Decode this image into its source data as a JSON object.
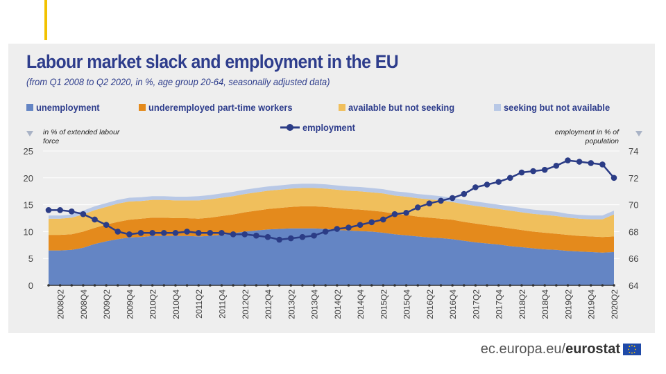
{
  "header": {
    "title": "Labour market slack and employment in the EU",
    "subtitle": "(from Q1 2008 to Q2 2020, in %, age group 20-64, seasonally adjusted data)"
  },
  "axis_notes": {
    "left": "in % of extended labour force",
    "right": "employment in % of population"
  },
  "footer": {
    "url": "ec.europa.eu/",
    "brand": "eurostat"
  },
  "colors": {
    "unemployment": "#6485c4",
    "underemployed": "#e48a1c",
    "available": "#f0bf5c",
    "seeking": "#b8c8e6",
    "employment": "#2b3c86",
    "panel": "#eeeeee",
    "grid": "#ffffff"
  },
  "chart_data": {
    "type": "area",
    "title": "Labour market slack and employment in the EU",
    "subtitle": "(from Q1 2008 to Q2 2020, in %, age group 20-64, seasonally adjusted data)",
    "x": [
      "2008Q1",
      "2008Q2",
      "2008Q3",
      "2008Q4",
      "2009Q1",
      "2009Q2",
      "2009Q3",
      "2009Q4",
      "2010Q1",
      "2010Q2",
      "2010Q3",
      "2010Q4",
      "2011Q1",
      "2011Q2",
      "2011Q3",
      "2011Q4",
      "2012Q1",
      "2012Q2",
      "2012Q3",
      "2012Q4",
      "2013Q1",
      "2013Q2",
      "2013Q3",
      "2013Q4",
      "2014Q1",
      "2014Q2",
      "2014Q3",
      "2014Q4",
      "2015Q1",
      "2015Q2",
      "2015Q3",
      "2015Q4",
      "2016Q1",
      "2016Q2",
      "2016Q3",
      "2016Q4",
      "2017Q1",
      "2017Q2",
      "2017Q3",
      "2017Q4",
      "2018Q1",
      "2018Q2",
      "2018Q3",
      "2018Q4",
      "2019Q1",
      "2019Q2",
      "2019Q3",
      "2019Q4",
      "2020Q1",
      "2020Q2"
    ],
    "x_tick_labels": [
      "2008Q2",
      "2008Q4",
      "2009Q2",
      "2009Q4",
      "2010Q2",
      "2010Q4",
      "2011Q2",
      "2011Q4",
      "2012Q2",
      "2012Q4",
      "2013Q2",
      "2013Q4",
      "2014Q2",
      "2014Q4",
      "2015Q2",
      "2015Q4",
      "2016Q2",
      "2016Q4",
      "2017Q2",
      "2017Q4",
      "2018Q2",
      "2018Q4",
      "2019Q2",
      "2019Q4",
      "2020Q2"
    ],
    "legend": [
      "unemployment",
      "underemployed part-time workers",
      "available but not seeking",
      "seeking but not available"
    ],
    "employment_legend": "employment",
    "left_axis": {
      "label": "in % of extended labour force",
      "ticks": [
        0,
        5,
        10,
        15,
        20,
        25
      ],
      "ylim": [
        0,
        25
      ]
    },
    "right_axis": {
      "label": "employment in % of population",
      "ticks": [
        64,
        66,
        68,
        70,
        72,
        74
      ],
      "ylim": [
        64,
        74
      ]
    },
    "series": [
      {
        "name": "unemployment",
        "axis": "left",
        "stacked": true,
        "values": [
          6.5,
          6.5,
          6.6,
          7.0,
          7.7,
          8.2,
          8.6,
          8.9,
          9.0,
          9.2,
          9.2,
          9.2,
          9.2,
          9.1,
          9.2,
          9.4,
          9.7,
          10.0,
          10.2,
          10.4,
          10.5,
          10.6,
          10.6,
          10.6,
          10.5,
          10.3,
          10.2,
          10.1,
          10.0,
          9.8,
          9.5,
          9.3,
          9.1,
          8.9,
          8.8,
          8.6,
          8.3,
          8.0,
          7.8,
          7.6,
          7.3,
          7.1,
          6.9,
          6.7,
          6.6,
          6.4,
          6.3,
          6.2,
          6.1,
          6.2
        ]
      },
      {
        "name": "underemployed part-time workers",
        "axis": "left",
        "stacked": true,
        "values": [
          2.9,
          2.9,
          2.9,
          3.0,
          3.0,
          3.1,
          3.2,
          3.3,
          3.4,
          3.4,
          3.4,
          3.3,
          3.3,
          3.3,
          3.4,
          3.5,
          3.5,
          3.6,
          3.7,
          3.8,
          3.9,
          4.0,
          4.1,
          4.1,
          4.1,
          4.1,
          4.0,
          4.0,
          3.9,
          3.9,
          3.8,
          3.8,
          3.7,
          3.7,
          3.6,
          3.6,
          3.5,
          3.5,
          3.4,
          3.3,
          3.3,
          3.2,
          3.1,
          3.1,
          3.0,
          3.0,
          2.9,
          2.9,
          2.9,
          2.9
        ]
      },
      {
        "name": "available but not seeking",
        "axis": "left",
        "stacked": true,
        "values": [
          3.0,
          3.0,
          3.1,
          3.2,
          3.3,
          3.3,
          3.4,
          3.4,
          3.3,
          3.3,
          3.3,
          3.3,
          3.3,
          3.4,
          3.4,
          3.4,
          3.4,
          3.4,
          3.4,
          3.4,
          3.4,
          3.4,
          3.4,
          3.4,
          3.4,
          3.4,
          3.4,
          3.4,
          3.4,
          3.4,
          3.4,
          3.4,
          3.4,
          3.4,
          3.4,
          3.3,
          3.3,
          3.3,
          3.3,
          3.3,
          3.3,
          3.3,
          3.3,
          3.3,
          3.3,
          3.2,
          3.2,
          3.2,
          3.3,
          4.1
        ]
      },
      {
        "name": "seeking but not available",
        "axis": "left",
        "stacked": true,
        "values": [
          0.6,
          0.6,
          0.6,
          0.7,
          0.7,
          0.7,
          0.7,
          0.7,
          0.7,
          0.7,
          0.7,
          0.7,
          0.7,
          0.8,
          0.8,
          0.8,
          0.8,
          0.8,
          0.8,
          0.8,
          0.8,
          0.8,
          0.8,
          0.8,
          0.8,
          0.8,
          0.8,
          0.8,
          0.8,
          0.8,
          0.8,
          0.8,
          0.8,
          0.8,
          0.8,
          0.8,
          0.8,
          0.8,
          0.8,
          0.8,
          0.8,
          0.8,
          0.8,
          0.8,
          0.8,
          0.7,
          0.7,
          0.7,
          0.7,
          0.7
        ]
      },
      {
        "name": "employment",
        "axis": "right",
        "type": "line",
        "values": [
          69.6,
          69.6,
          69.5,
          69.3,
          68.9,
          68.5,
          68.0,
          67.8,
          67.9,
          67.9,
          67.9,
          67.9,
          68.0,
          67.9,
          67.9,
          67.9,
          67.8,
          67.8,
          67.7,
          67.6,
          67.4,
          67.5,
          67.6,
          67.7,
          68.0,
          68.2,
          68.3,
          68.5,
          68.7,
          68.9,
          69.3,
          69.4,
          69.8,
          70.1,
          70.3,
          70.5,
          70.8,
          71.3,
          71.5,
          71.7,
          72.0,
          72.4,
          72.5,
          72.6,
          72.9,
          73.3,
          73.2,
          73.1,
          73.0,
          72.0
        ]
      }
    ]
  }
}
